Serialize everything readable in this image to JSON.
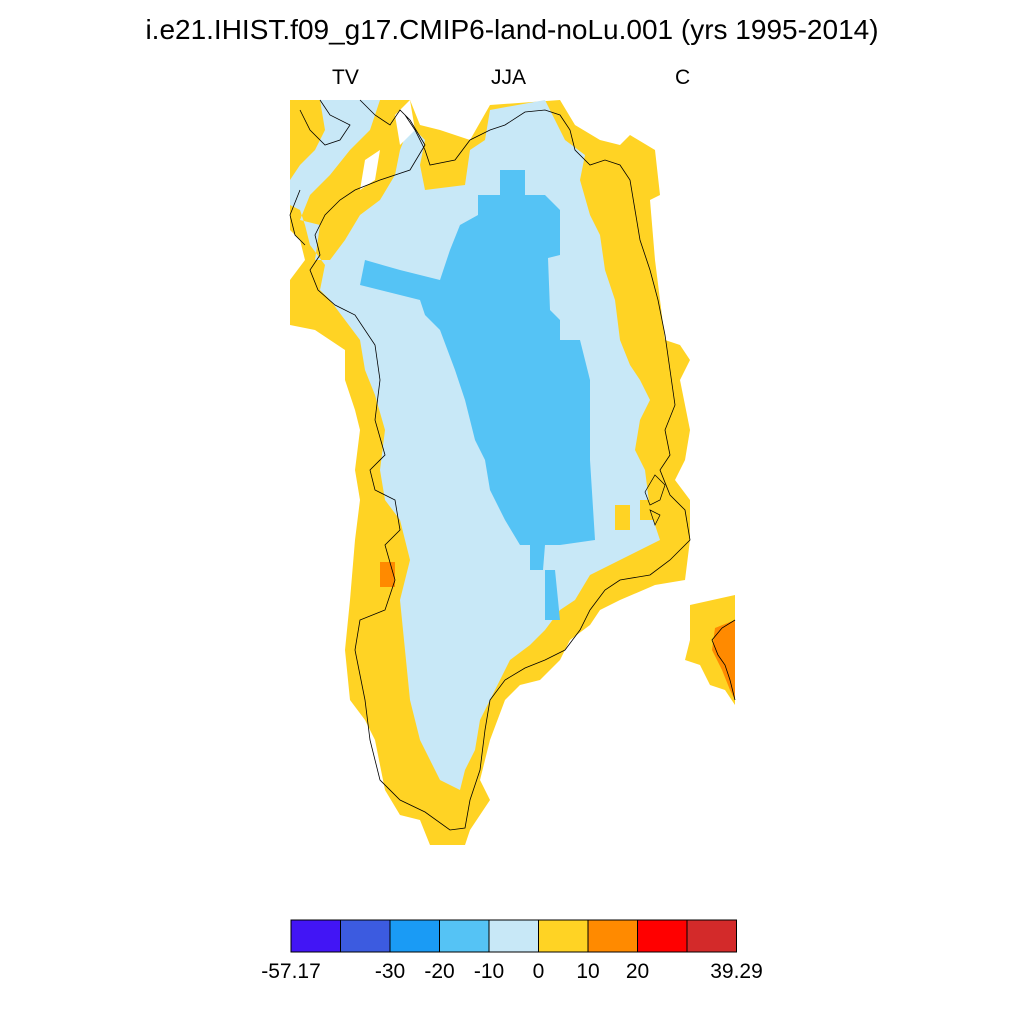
{
  "title": "i.e21.IHIST.f09_g17.CMIP6-land-noLu.001 (yrs 1995-2014)",
  "subtitle": {
    "left": "TV",
    "center": "JJA",
    "right": "C"
  },
  "colorbar": {
    "colors": [
      "#4215f5",
      "#3c5be0",
      "#1a9bf5",
      "#55c3f5",
      "#c8e8f7",
      "#ffd324",
      "#ff8a00",
      "#ff0000",
      "#d32a2a"
    ],
    "labels": [
      "-57.17",
      "-30",
      "-20",
      "-10",
      "0",
      "10",
      "20",
      "39.29"
    ]
  },
  "map": {
    "region": "Greenland",
    "bins": {
      "pale_blue": "-10 to 0",
      "light_blue": "-20 to -10",
      "yellow": "0 to 10",
      "orange": "10 to 20"
    }
  }
}
